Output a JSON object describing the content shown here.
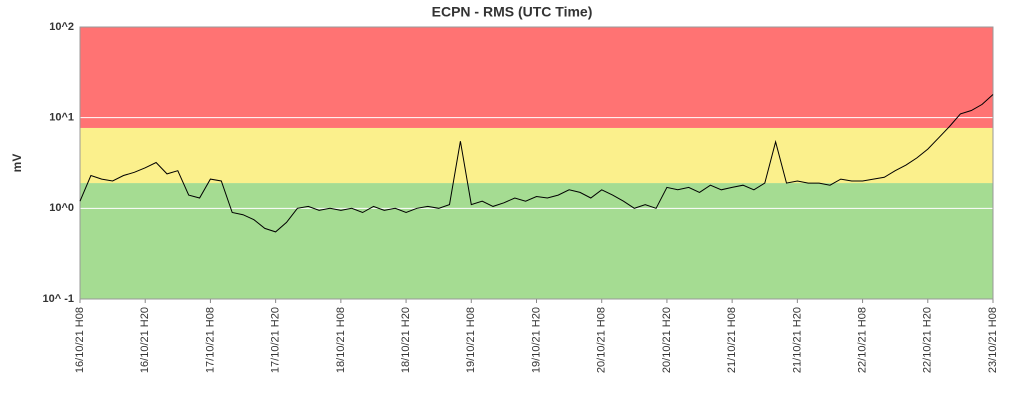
{
  "chart_data": {
    "type": "line",
    "title": "ECPN - RMS (UTC Time)",
    "y_label": "mV",
    "log_scale": true,
    "grid": true,
    "color": "#000000",
    "ylim": [
      0.1,
      100
    ],
    "yticks": [
      {
        "value": 0.1,
        "label": "10^ -1"
      },
      {
        "value": 1,
        "label": "10^0"
      },
      {
        "value": 10,
        "label": "10^1"
      },
      {
        "value": 100,
        "label": "10^2"
      }
    ],
    "bands": [
      {
        "from": 0.1,
        "to": 1.9,
        "color": "#a5dc92"
      },
      {
        "from": 1.9,
        "to": 7.7,
        "color": "#fbf08c"
      },
      {
        "from": 7.7,
        "to": 100,
        "color": "#ff7373"
      }
    ],
    "xlim": [
      "16/10/21 H08",
      "23/10/21 H08"
    ],
    "xticks": [
      "16/10/21 H08",
      "16/10/21 H20",
      "17/10/21 H08",
      "17/10/21 H20",
      "18/10/21 H08",
      "18/10/21 H20",
      "19/10/21 H08",
      "19/10/21 H20",
      "20/10/21 H08",
      "20/10/21 H20",
      "21/10/21 H08",
      "21/10/21 H20",
      "22/10/21 H08",
      "22/10/21 H20",
      "23/10/21 H08"
    ],
    "x": [
      "16/10/21 H08",
      "16/10/21 H10",
      "16/10/21 H12",
      "16/10/21 H14",
      "16/10/21 H16",
      "16/10/21 H18",
      "16/10/21 H20",
      "16/10/21 H22",
      "17/10/21 H00",
      "17/10/21 H02",
      "17/10/21 H04",
      "17/10/21 H06",
      "17/10/21 H08",
      "17/10/21 H10",
      "17/10/21 H12",
      "17/10/21 H14",
      "17/10/21 H16",
      "17/10/21 H18",
      "17/10/21 H20",
      "17/10/21 H22",
      "18/10/21 H00",
      "18/10/21 H02",
      "18/10/21 H04",
      "18/10/21 H06",
      "18/10/21 H08",
      "18/10/21 H10",
      "18/10/21 H12",
      "18/10/21 H14",
      "18/10/21 H16",
      "18/10/21 H18",
      "18/10/21 H20",
      "18/10/21 H22",
      "19/10/21 H00",
      "19/10/21 H02",
      "19/10/21 H04",
      "19/10/21 H06",
      "19/10/21 H08",
      "19/10/21 H10",
      "19/10/21 H12",
      "19/10/21 H14",
      "19/10/21 H16",
      "19/10/21 H18",
      "19/10/21 H20",
      "19/10/21 H22",
      "20/10/21 H00",
      "20/10/21 H02",
      "20/10/21 H04",
      "20/10/21 H06",
      "20/10/21 H08",
      "20/10/21 H10",
      "20/10/21 H12",
      "20/10/21 H14",
      "20/10/21 H16",
      "20/10/21 H18",
      "20/10/21 H20",
      "20/10/21 H22",
      "21/10/21 H00",
      "21/10/21 H02",
      "21/10/21 H04",
      "21/10/21 H06",
      "21/10/21 H08",
      "21/10/21 H10",
      "21/10/21 H12",
      "21/10/21 H14",
      "21/10/21 H16",
      "21/10/21 H18",
      "21/10/21 H20",
      "21/10/21 H22",
      "22/10/21 H00",
      "22/10/21 H02",
      "22/10/21 H04",
      "22/10/21 H06",
      "22/10/21 H08",
      "22/10/21 H10",
      "22/10/21 H12",
      "22/10/21 H14",
      "22/10/21 H16",
      "22/10/21 H18",
      "22/10/21 H20",
      "22/10/21 H22",
      "23/10/21 H00",
      "23/10/21 H02",
      "23/10/21 H04",
      "23/10/21 H06",
      "23/10/21 H08"
    ],
    "values": [
      1.2,
      2.3,
      2.1,
      2.0,
      2.3,
      2.5,
      2.8,
      3.2,
      2.4,
      2.6,
      1.4,
      1.3,
      2.1,
      2.0,
      0.9,
      0.85,
      0.75,
      0.6,
      0.55,
      0.7,
      1.0,
      1.05,
      0.95,
      1.0,
      0.95,
      1.0,
      0.9,
      1.05,
      0.95,
      1.0,
      0.9,
      1.0,
      1.05,
      1.0,
      1.1,
      5.5,
      1.1,
      1.2,
      1.05,
      1.15,
      1.3,
      1.2,
      1.35,
      1.3,
      1.4,
      1.6,
      1.5,
      1.3,
      1.6,
      1.4,
      1.2,
      1.0,
      1.1,
      1.0,
      1.7,
      1.6,
      1.7,
      1.5,
      1.8,
      1.6,
      1.7,
      1.8,
      1.6,
      1.9,
      5.4,
      1.9,
      2.0,
      1.9,
      1.9,
      1.8,
      2.1,
      2.0,
      2.0,
      2.1,
      2.2,
      2.6,
      3.0,
      3.6,
      4.5,
      6.0,
      8.0,
      11,
      12,
      14,
      18
    ]
  }
}
